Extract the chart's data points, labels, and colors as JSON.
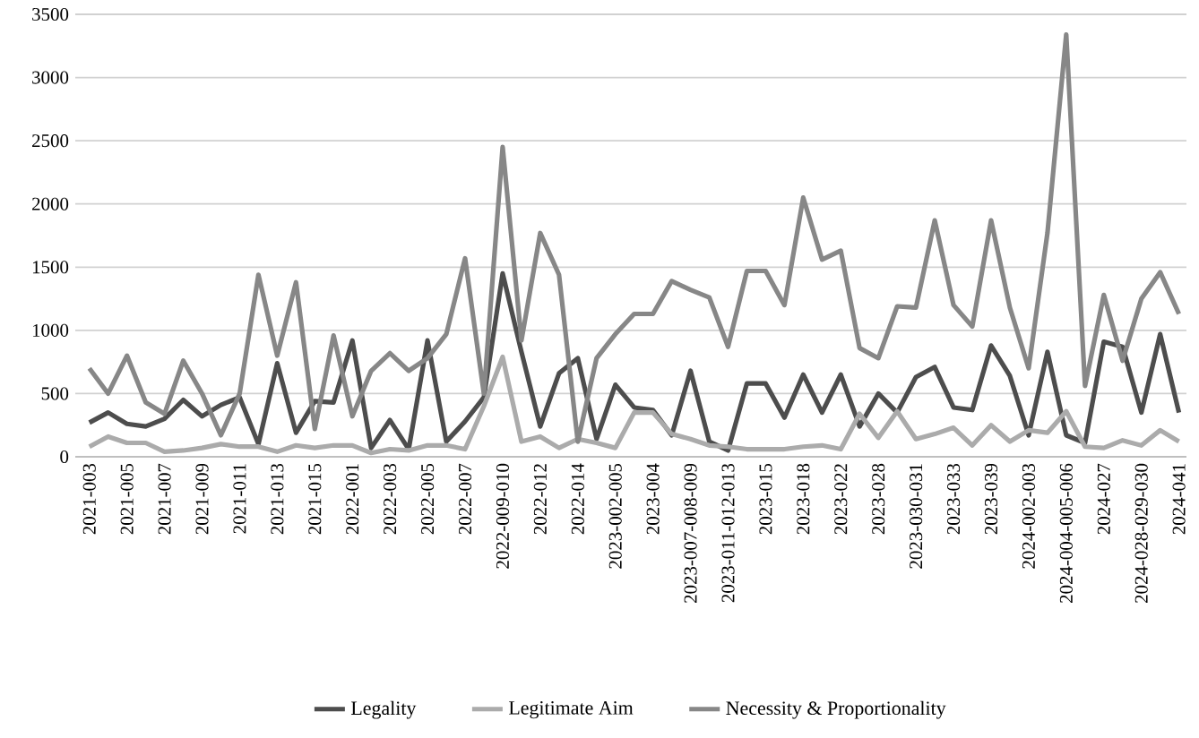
{
  "chart_data": {
    "type": "line",
    "categories": [
      "2021-003",
      null,
      "2021-005",
      null,
      "2021-007",
      null,
      "2021-009",
      null,
      "2021-011",
      null,
      "2021-013",
      null,
      "2021-015",
      null,
      "2022-001",
      null,
      "2022-003",
      null,
      "2022-005",
      null,
      "2022-007",
      null,
      "2022-009-010",
      null,
      "2022-012",
      null,
      "2022-014",
      null,
      "2023-002-005",
      null,
      "2023-004",
      null,
      "2023-007-008-009",
      null,
      "2023-011-012-013",
      null,
      "2023-015",
      null,
      "2023-018",
      null,
      "2023-022",
      null,
      "2023-028",
      null,
      "2023-030-031",
      null,
      "2023-033",
      null,
      "2023-039",
      null,
      "2024-002-003",
      null,
      "2024-004-005-006",
      null,
      "2024-027",
      null,
      "2024-028-029-030",
      null,
      "2024-041"
    ],
    "series": [
      {
        "name": "Legality",
        "color": "#4d4d4d",
        "values": [
          270,
          350,
          260,
          240,
          300,
          450,
          320,
          410,
          470,
          100,
          740,
          190,
          440,
          430,
          920,
          70,
          290,
          60,
          920,
          120,
          280,
          470,
          1450,
          830,
          240,
          660,
          780,
          140,
          570,
          390,
          370,
          170,
          680,
          120,
          50,
          580,
          580,
          310,
          650,
          350,
          650,
          240,
          500,
          350,
          630,
          710,
          390,
          370,
          880,
          640,
          170,
          830,
          170,
          110,
          910,
          870,
          350,
          970,
          350
        ]
      },
      {
        "name": "Legitimate Aim",
        "color": "#ababab",
        "values": [
          80,
          160,
          110,
          110,
          40,
          50,
          70,
          100,
          80,
          80,
          40,
          90,
          70,
          90,
          90,
          30,
          60,
          50,
          90,
          90,
          60,
          400,
          790,
          120,
          160,
          70,
          140,
          110,
          70,
          350,
          350,
          180,
          140,
          90,
          80,
          60,
          60,
          60,
          80,
          90,
          60,
          340,
          150,
          360,
          140,
          180,
          230,
          90,
          250,
          120,
          210,
          190,
          360,
          80,
          70,
          130,
          90,
          210,
          120
        ]
      },
      {
        "name": "Necessity & Proportionality",
        "color": "#878787",
        "values": [
          700,
          500,
          800,
          430,
          340,
          760,
          500,
          170,
          500,
          1440,
          800,
          1380,
          220,
          960,
          320,
          680,
          820,
          680,
          780,
          970,
          1570,
          500,
          2450,
          920,
          1770,
          1440,
          120,
          780,
          970,
          1130,
          1130,
          1390,
          1320,
          1260,
          870,
          1470,
          1470,
          1200,
          2050,
          1560,
          1630,
          860,
          780,
          1190,
          1180,
          1870,
          1200,
          1030,
          1870,
          1180,
          700,
          1770,
          3340,
          560,
          1280,
          760,
          1250,
          1460,
          1130
        ]
      }
    ],
    "ylim": [
      0,
      3500
    ],
    "yticks": [
      0,
      500,
      1000,
      1500,
      2000,
      2500,
      3000,
      3500
    ],
    "grid": "y",
    "legend": "bottom",
    "line_style": "solid",
    "marker": "none"
  }
}
